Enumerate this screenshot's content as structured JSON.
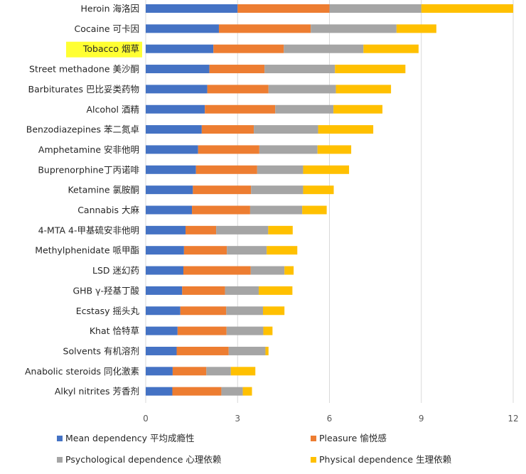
{
  "chart_data": {
    "type": "bar",
    "orientation": "horizontal",
    "stacked": true,
    "categories": [
      "Heroin 海洛因",
      "Cocaine 可卡因",
      "Tobacco 烟草",
      "Street methadone 美沙酮",
      "Barbiturates 巴比妥类药物",
      "Alcohol 酒精",
      "Benzodiazepines 苯二氮卓",
      "Amphetamine 安非他明",
      "Buprenorphine丁丙诺啡",
      "Ketamine 氯胺酮",
      "Cannabis 大麻",
      "4-MTA 4-甲基硫安非他明",
      "Methylphenidate 哌甲酯",
      "LSD 迷幻药",
      "GHB γ-羟基丁酸",
      "Ecstasy 摇头丸",
      "Khat 恰特草",
      "Solvents 有机溶剂",
      "Anabolic steroids 同化激素",
      "Alkyl nitrites 芳香剂"
    ],
    "highlighted_category": "Tobacco 烟草",
    "series": [
      {
        "name": "Mean dependency 平均成瘾性",
        "color": "#4472c4",
        "values": [
          3.0,
          2.39,
          2.21,
          2.08,
          2.01,
          1.93,
          1.83,
          1.71,
          1.64,
          1.54,
          1.51,
          1.3,
          1.25,
          1.23,
          1.19,
          1.13,
          1.04,
          1.01,
          0.88,
          0.87
        ]
      },
      {
        "name": "Pleasure 愉悦感",
        "color": "#ed7d31",
        "values": [
          3.0,
          3.0,
          2.3,
          1.8,
          2.0,
          2.3,
          1.7,
          2.0,
          2.0,
          1.9,
          1.9,
          1.0,
          1.4,
          2.2,
          1.4,
          1.5,
          1.6,
          1.7,
          1.1,
          1.6
        ]
      },
      {
        "name": "Psychological dependence 心理依赖",
        "color": "#a5a5a5",
        "values": [
          3.0,
          2.8,
          2.6,
          2.3,
          2.2,
          1.9,
          2.1,
          1.9,
          1.5,
          1.7,
          1.7,
          1.7,
          1.3,
          1.1,
          1.1,
          1.2,
          1.2,
          1.2,
          0.8,
          0.7
        ]
      },
      {
        "name": "Physical dependence 生理依赖",
        "color": "#ffc000",
        "values": [
          3.0,
          1.3,
          1.8,
          2.3,
          1.8,
          1.6,
          1.8,
          1.1,
          1.5,
          1.0,
          0.8,
          0.8,
          1.0,
          0.3,
          1.1,
          0.7,
          0.3,
          0.1,
          0.8,
          0.3
        ]
      }
    ],
    "xlim": [
      0,
      12
    ],
    "xticks": [
      0,
      3,
      6,
      9,
      12
    ],
    "grid": true,
    "legend_position": "bottom"
  }
}
